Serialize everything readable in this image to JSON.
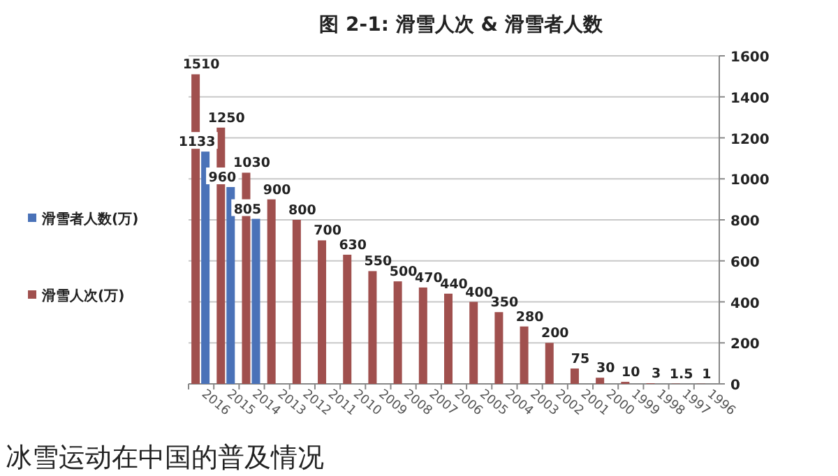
{
  "chart_data": {
    "type": "bar",
    "title": "图 2-1: 滑雪人次 & 滑雪者人数",
    "categories": [
      "2016",
      "2015",
      "2014",
      "2013",
      "2012",
      "2011",
      "2010",
      "2009",
      "2008",
      "2007",
      "2006",
      "2005",
      "2004",
      "2003",
      "2002",
      "2001",
      "2000",
      "1999",
      "1998",
      "1997",
      "1996"
    ],
    "series": [
      {
        "name": "滑雪者人数(万)",
        "color": "#4a72b8",
        "values": [
          1133,
          960,
          805,
          null,
          null,
          null,
          null,
          null,
          null,
          null,
          null,
          null,
          null,
          null,
          null,
          null,
          null,
          null,
          null,
          null,
          null
        ]
      },
      {
        "name": "滑雪人次(万)",
        "color": "#a0504e",
        "values": [
          1510,
          1250,
          1030,
          900,
          800,
          700,
          630,
          550,
          500,
          470,
          440,
          400,
          350,
          280,
          200,
          75,
          30,
          10,
          3,
          1.5,
          1
        ]
      }
    ],
    "ylim": [
      0,
      1600
    ],
    "yticks": [
      0,
      200,
      400,
      600,
      800,
      1000,
      1200,
      1400,
      1600
    ],
    "grid": "y",
    "legend": "left",
    "data_labels": true,
    "annotations": [
      "冰雪运动在中国的普及情况"
    ]
  }
}
